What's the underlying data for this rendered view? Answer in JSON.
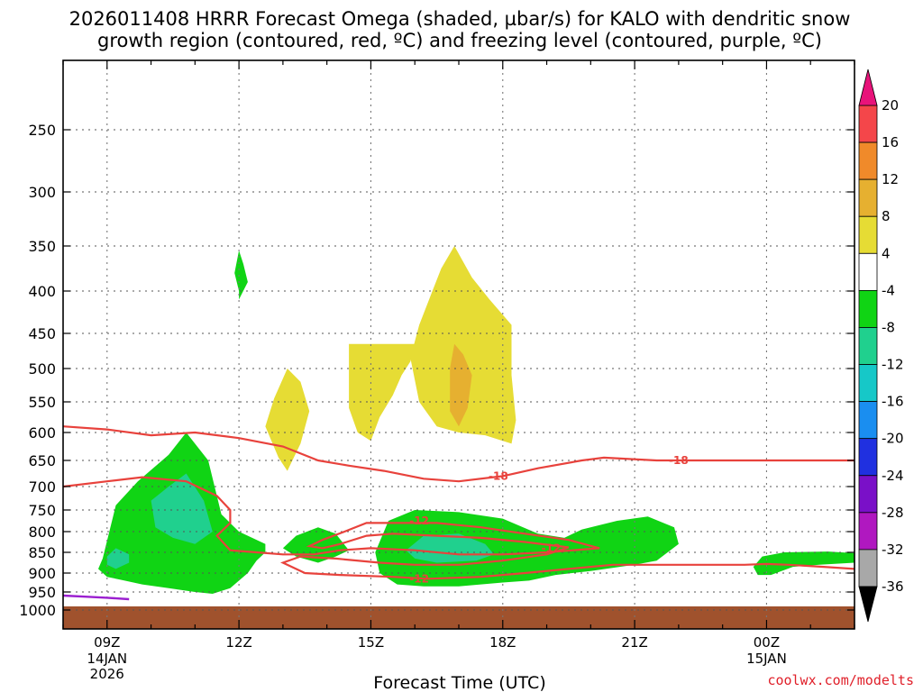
{
  "chart_data": {
    "type": "heatmap",
    "title_lines": [
      "2026011408 HRRR Forecast Omega (shaded, µbar/s) for KALO with dendritic snow",
      "growth region (contoured, red, ºC) and freezing level (contoured, purple, ºC)"
    ],
    "xlabel": "Forecast Time (UTC)",
    "credit": "coolwx.com/modelts",
    "x_range_hours": [
      8,
      26
    ],
    "y_pressure_range_hPa": [
      200,
      1040
    ],
    "y_ticks": [
      250,
      300,
      350,
      400,
      450,
      500,
      550,
      600,
      650,
      700,
      750,
      800,
      850,
      900,
      950,
      1000
    ],
    "x_ticks": [
      {
        "hour": 9,
        "label": "09Z",
        "sub1": "14JAN",
        "sub2": "2026"
      },
      {
        "hour": 12,
        "label": "12Z",
        "sub1": "",
        "sub2": ""
      },
      {
        "hour": 15,
        "label": "15Z",
        "sub1": "",
        "sub2": ""
      },
      {
        "hour": 18,
        "label": "18Z",
        "sub1": "",
        "sub2": ""
      },
      {
        "hour": 21,
        "label": "21Z",
        "sub1": "",
        "sub2": ""
      },
      {
        "hour": 24,
        "label": "00Z",
        "sub1": "15JAN",
        "sub2": ""
      }
    ],
    "colorbar": {
      "unit": "µbar/s",
      "labels": [
        "20",
        "16",
        "12",
        "8",
        "4",
        "-4",
        "-8",
        "-12",
        "-16",
        "-20",
        "-24",
        "-28",
        "-32",
        "-36"
      ],
      "bands": [
        {
          "from": 16,
          "to": 20,
          "color": "#f4464a"
        },
        {
          "from": 12,
          "to": 16,
          "color": "#f08a2a"
        },
        {
          "from": 8,
          "to": 12,
          "color": "#e6b030"
        },
        {
          "from": 4,
          "to": 8,
          "color": "#e6dc34"
        },
        {
          "from": -4,
          "to": 4,
          "color": "#ffffff"
        },
        {
          "from": -8,
          "to": -4,
          "color": "#10d414"
        },
        {
          "from": -12,
          "to": -8,
          "color": "#20d08e"
        },
        {
          "from": -16,
          "to": -12,
          "color": "#16c8c8"
        },
        {
          "from": -20,
          "to": -16,
          "color": "#1a8ef0"
        },
        {
          "from": -24,
          "to": -20,
          "color": "#2030e0"
        },
        {
          "from": -28,
          "to": -24,
          "color": "#7a10c8"
        },
        {
          "from": -32,
          "to": -28,
          "color": "#b018c0"
        },
        {
          "from": -36,
          "to": -32,
          "color": "#a8a8a8"
        }
      ],
      "over_color": "#e8137a",
      "under_color": "#000000"
    },
    "ground_color": "#a0522d",
    "ground_from_hPa": 960,
    "omega_regions": [
      {
        "band": "-8 to -4",
        "color": "#10d414",
        "points": [
          [
            8.9,
            865
          ],
          [
            9.2,
            740
          ],
          [
            9.7,
            690
          ],
          [
            10.4,
            640
          ],
          [
            10.8,
            600
          ],
          [
            11.3,
            650
          ],
          [
            11.6,
            760
          ],
          [
            12.0,
            800
          ],
          [
            12.6,
            830
          ],
          [
            12.6,
            850
          ],
          [
            12.4,
            870
          ],
          [
            12.2,
            900
          ],
          [
            11.8,
            940
          ],
          [
            11.4,
            955
          ],
          [
            11.0,
            950
          ],
          [
            10.4,
            940
          ],
          [
            9.8,
            930
          ],
          [
            9.4,
            920
          ],
          [
            9.0,
            910
          ],
          [
            8.8,
            890
          ]
        ]
      },
      {
        "band": "-8 to -4",
        "color": "#10d414",
        "points": [
          [
            12.0,
            400
          ],
          [
            11.9,
            380
          ],
          [
            12.0,
            355
          ],
          [
            12.1,
            370
          ],
          [
            12.2,
            390
          ],
          [
            12.0,
            410
          ]
        ]
      },
      {
        "band": "-8 to -4",
        "color": "#10d414",
        "points": [
          [
            13.0,
            840
          ],
          [
            13.3,
            810
          ],
          [
            13.8,
            790
          ],
          [
            14.2,
            805
          ],
          [
            14.5,
            845
          ],
          [
            14.2,
            860
          ],
          [
            13.8,
            875
          ],
          [
            13.3,
            860
          ]
        ]
      },
      {
        "band": "-8 to -4",
        "color": "#10d414",
        "points": [
          [
            15.1,
            850
          ],
          [
            15.4,
            775
          ],
          [
            16.0,
            750
          ],
          [
            17.0,
            755
          ],
          [
            18.0,
            770
          ],
          [
            18.8,
            805
          ],
          [
            19.4,
            815
          ],
          [
            19.8,
            795
          ],
          [
            20.6,
            775
          ],
          [
            21.3,
            765
          ],
          [
            21.9,
            790
          ],
          [
            22.0,
            830
          ],
          [
            21.5,
            870
          ],
          [
            21.0,
            880
          ],
          [
            20.0,
            895
          ],
          [
            19.2,
            905
          ],
          [
            18.6,
            920
          ],
          [
            18.0,
            925
          ],
          [
            17.0,
            935
          ],
          [
            16.2,
            935
          ],
          [
            15.6,
            930
          ],
          [
            15.2,
            900
          ]
        ]
      },
      {
        "band": "-8 to -4",
        "color": "#10d414",
        "points": [
          [
            23.7,
            885
          ],
          [
            23.9,
            860
          ],
          [
            24.4,
            850
          ],
          [
            25.4,
            848
          ],
          [
            26.0,
            852
          ],
          [
            26.0,
            875
          ],
          [
            25.2,
            880
          ],
          [
            24.6,
            885
          ],
          [
            24.1,
            905
          ],
          [
            23.8,
            905
          ]
        ]
      },
      {
        "band": "-12 to -8",
        "color": "#20d08e",
        "points": [
          [
            9.0,
            860
          ],
          [
            9.2,
            840
          ],
          [
            9.5,
            855
          ],
          [
            9.5,
            875
          ],
          [
            9.2,
            890
          ],
          [
            9.0,
            880
          ]
        ]
      },
      {
        "band": "-12 to -8",
        "color": "#20d08e",
        "points": [
          [
            10.0,
            730
          ],
          [
            10.4,
            700
          ],
          [
            10.8,
            675
          ],
          [
            11.2,
            730
          ],
          [
            11.4,
            800
          ],
          [
            11.0,
            830
          ],
          [
            10.5,
            815
          ],
          [
            10.1,
            790
          ]
        ]
      },
      {
        "band": "-12 to -8",
        "color": "#20d08e",
        "points": [
          [
            15.8,
            845
          ],
          [
            16.2,
            810
          ],
          [
            17.0,
            805
          ],
          [
            17.6,
            830
          ],
          [
            17.8,
            855
          ],
          [
            17.4,
            870
          ],
          [
            16.5,
            875
          ],
          [
            16.0,
            865
          ]
        ]
      },
      {
        "band": "4 to 8",
        "color": "#e6dc34",
        "points": [
          [
            12.6,
            590
          ],
          [
            12.8,
            545
          ],
          [
            13.1,
            500
          ],
          [
            13.4,
            520
          ],
          [
            13.6,
            565
          ],
          [
            13.4,
            620
          ],
          [
            13.1,
            670
          ],
          [
            12.9,
            645
          ]
        ]
      },
      {
        "band": "4 to 8",
        "color": "#e6dc34",
        "points": [
          [
            14.5,
            465
          ],
          [
            16.0,
            465
          ],
          [
            15.9,
            490
          ],
          [
            15.7,
            510
          ],
          [
            15.5,
            540
          ],
          [
            15.2,
            575
          ],
          [
            15.0,
            615
          ],
          [
            14.7,
            600
          ],
          [
            14.5,
            560
          ]
        ]
      },
      {
        "band": "4 to 8",
        "color": "#e6dc34",
        "points": [
          [
            15.9,
            485
          ],
          [
            16.1,
            440
          ],
          [
            16.4,
            400
          ],
          [
            16.6,
            375
          ],
          [
            16.9,
            350
          ],
          [
            17.3,
            385
          ],
          [
            17.7,
            410
          ],
          [
            18.2,
            440
          ],
          [
            18.2,
            510
          ],
          [
            18.3,
            580
          ],
          [
            18.2,
            620
          ],
          [
            17.6,
            605
          ],
          [
            17.0,
            600
          ],
          [
            16.5,
            590
          ],
          [
            16.1,
            550
          ]
        ]
      },
      {
        "band": "8 to 12",
        "color": "#e6b030",
        "points": [
          [
            16.8,
            500
          ],
          [
            16.9,
            465
          ],
          [
            17.1,
            480
          ],
          [
            17.3,
            510
          ],
          [
            17.2,
            560
          ],
          [
            17.0,
            590
          ],
          [
            16.8,
            565
          ]
        ]
      }
    ],
    "dgz_contours": [
      {
        "label": "-18",
        "label_at": [
          [
            17.9,
            680
          ],
          [
            22.0,
            650
          ]
        ],
        "points": [
          [
            8,
            590
          ],
          [
            9,
            595
          ],
          [
            10,
            605
          ],
          [
            11,
            600
          ],
          [
            12,
            610
          ],
          [
            13,
            625
          ],
          [
            13.8,
            650
          ],
          [
            14.5,
            660
          ],
          [
            15.3,
            670
          ],
          [
            16.2,
            685
          ],
          [
            17.0,
            690
          ],
          [
            18.0,
            680
          ],
          [
            18.8,
            665
          ],
          [
            19.8,
            650
          ],
          [
            20.3,
            645
          ],
          [
            21.5,
            650
          ],
          [
            22.5,
            650
          ],
          [
            23.7,
            650
          ],
          [
            26,
            650
          ]
        ]
      },
      {
        "label": "-12",
        "label_at": [
          [
            16.1,
            775
          ],
          [
            19.1,
            840
          ],
          [
            16.1,
            915
          ]
        ],
        "points": [
          [
            8,
            700
          ],
          [
            9,
            690
          ],
          [
            9.8,
            682
          ],
          [
            10.8,
            690
          ],
          [
            11.5,
            720
          ],
          [
            11.8,
            750
          ],
          [
            11.8,
            780
          ],
          [
            11.5,
            810
          ],
          [
            11.8,
            845
          ],
          [
            12.4,
            850
          ],
          [
            13.0,
            855
          ],
          [
            13.7,
            855
          ],
          [
            14.3,
            845
          ],
          [
            15.0,
            840
          ],
          [
            16.0,
            845
          ],
          [
            17.0,
            855
          ],
          [
            18.0,
            855
          ],
          [
            19.0,
            850
          ],
          [
            20.2,
            840
          ],
          [
            19.5,
            820
          ],
          [
            18.5,
            805
          ],
          [
            17.5,
            790
          ],
          [
            16.5,
            780
          ],
          [
            15.5,
            780
          ],
          [
            14.9,
            780
          ],
          [
            14.4,
            800
          ],
          [
            13.9,
            820
          ],
          [
            13.6,
            835
          ],
          [
            13.9,
            840
          ],
          [
            14.3,
            830
          ],
          [
            14.9,
            810
          ],
          [
            15.5,
            805
          ],
          [
            16.5,
            810
          ],
          [
            17.5,
            815
          ],
          [
            18.5,
            825
          ],
          [
            19.5,
            838
          ],
          [
            19.0,
            855
          ],
          [
            18.0,
            870
          ],
          [
            17.0,
            880
          ],
          [
            16.0,
            880
          ],
          [
            15.2,
            875
          ],
          [
            14.2,
            865
          ],
          [
            13.4,
            860
          ],
          [
            13.0,
            875
          ],
          [
            13.5,
            900
          ],
          [
            14.3,
            905
          ],
          [
            15.5,
            910
          ],
          [
            16.3,
            915
          ],
          [
            17.5,
            910
          ],
          [
            18.5,
            900
          ],
          [
            19.5,
            890
          ],
          [
            20.5,
            880
          ],
          [
            21.5,
            880
          ],
          [
            22.5,
            880
          ],
          [
            23.5,
            880
          ],
          [
            24.0,
            878
          ],
          [
            24.5,
            880
          ],
          [
            25.3,
            885
          ],
          [
            26,
            890
          ]
        ]
      }
    ],
    "freezing_level": {
      "points": [
        [
          8,
          960
        ],
        [
          8.5,
          963
        ],
        [
          9.0,
          966
        ],
        [
          9.5,
          970
        ]
      ]
    }
  }
}
